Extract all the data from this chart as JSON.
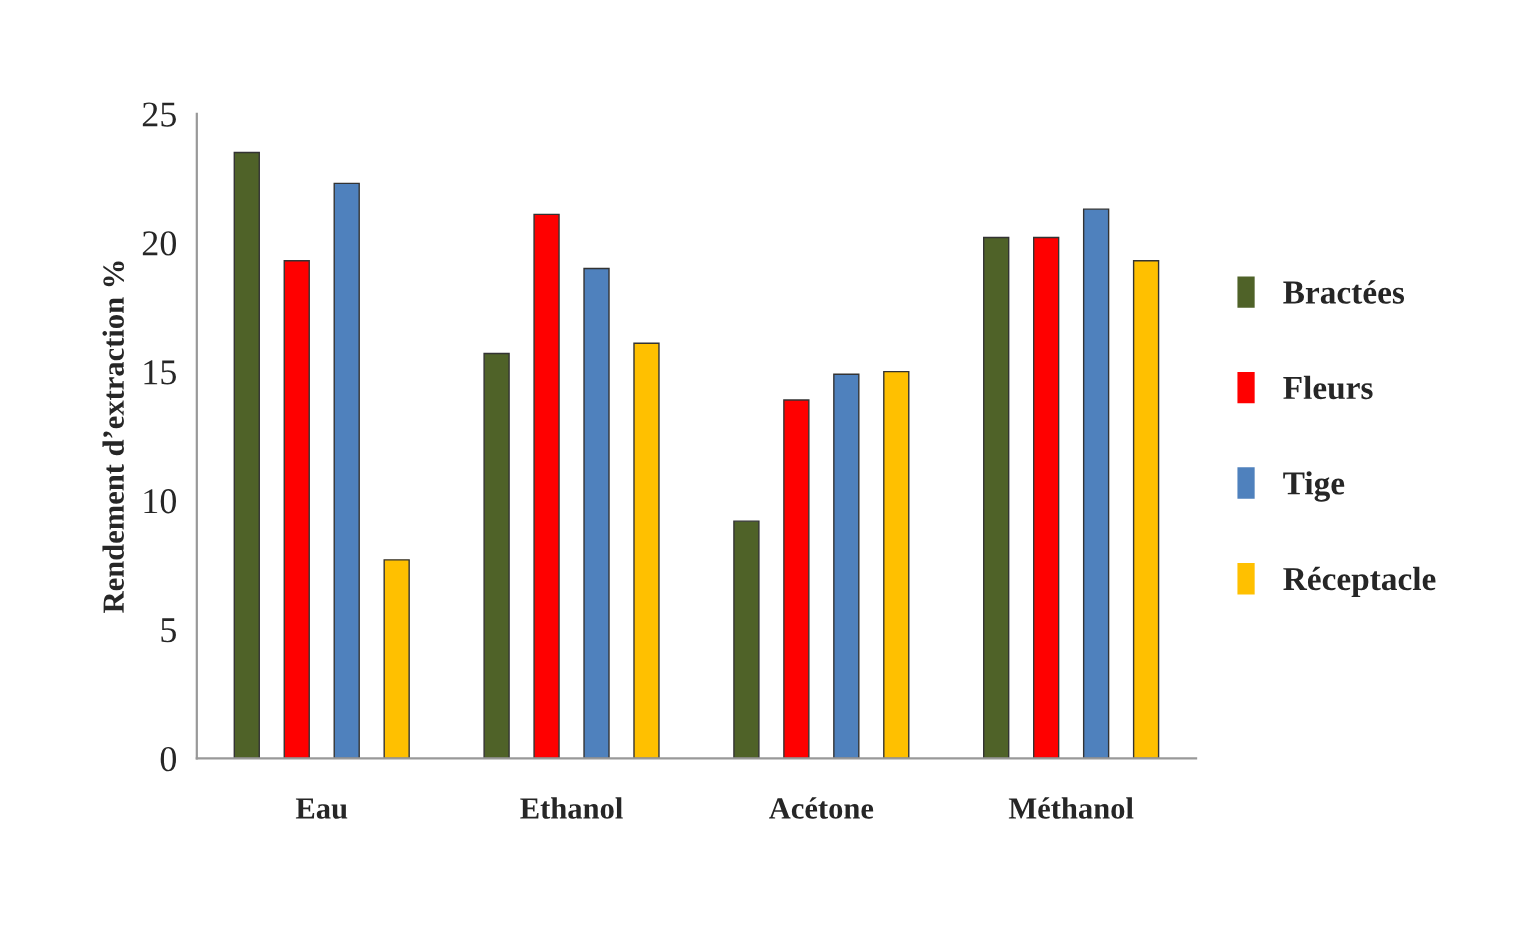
{
  "chart_data": {
    "type": "bar",
    "ylabel": "Rendement d’extraction %",
    "categories": [
      "Eau",
      "Ethanol",
      "Acétone",
      "Méthanol"
    ],
    "series": [
      {
        "name": "Bractées",
        "color": "#4f6228",
        "values": [
          23.5,
          15.7,
          9.2,
          20.2
        ]
      },
      {
        "name": "Fleurs",
        "color": "#ff0000",
        "values": [
          19.3,
          21.1,
          13.9,
          20.2
        ]
      },
      {
        "name": "Tige",
        "color": "#4f81bd",
        "values": [
          22.3,
          19.0,
          14.9,
          21.3
        ]
      },
      {
        "name": "Réceptacle",
        "color": "#ffc000",
        "values": [
          7.7,
          16.1,
          15.0,
          19.3
        ]
      }
    ],
    "ylim": [
      0,
      25
    ],
    "yticks": [
      0,
      5,
      10,
      15,
      20,
      25
    ],
    "grid": false,
    "legend": "right"
  }
}
